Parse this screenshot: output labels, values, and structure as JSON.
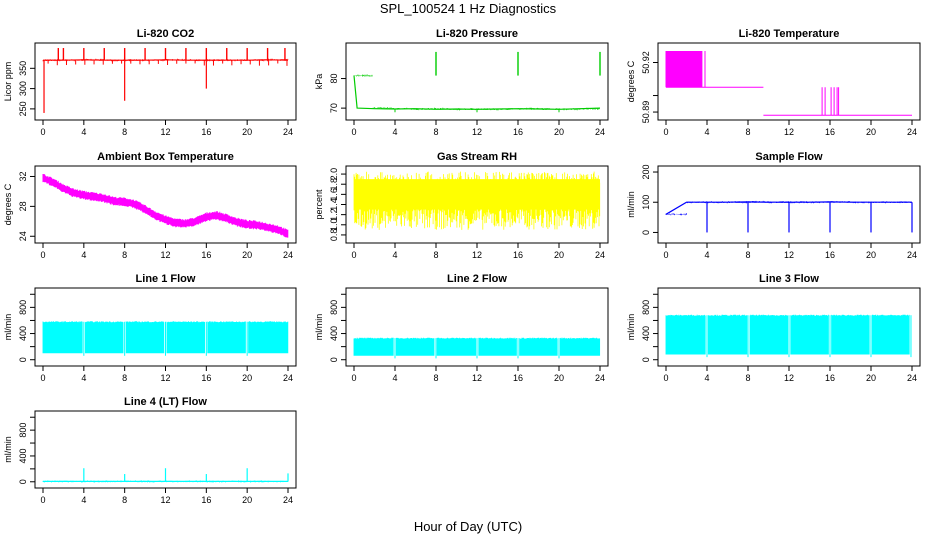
{
  "figure": {
    "title": "SPL_100524  1 Hz Diagnostics",
    "xlabel": "Hour of Day (UTC)"
  },
  "chart_data": [
    {
      "type": "line",
      "title": "Li-820 CO2",
      "ylabel": "Licor ppm",
      "color": "#ff0000",
      "xlim": [
        0,
        24
      ],
      "ylim": [
        230,
        405
      ],
      "yticks": [
        "250",
        "300",
        "350"
      ],
      "ytick_values": [
        250,
        300,
        350
      ],
      "xticks": [
        "0",
        "4",
        "8",
        "12",
        "16",
        "20",
        "24"
      ],
      "baseline": 370,
      "x": [
        0,
        2,
        4,
        6,
        8,
        10,
        12,
        14,
        16,
        18,
        20,
        22,
        24
      ],
      "y": [
        370,
        370,
        371,
        370,
        370,
        370,
        371,
        370,
        370,
        370,
        370,
        371,
        370
      ],
      "spikes_up_at_hours": [
        1.5,
        2,
        4,
        6,
        8,
        10,
        12,
        14,
        16,
        18,
        20,
        22,
        23.7
      ],
      "spike_up_value": 400,
      "spikes_down": [
        [
          0.1,
          240
        ],
        [
          8,
          270
        ],
        [
          16,
          300
        ]
      ]
    },
    {
      "type": "line",
      "title": "Li-820 Pressure",
      "ylabel": "kPa",
      "color": "#00cc00",
      "xlim": [
        0,
        24
      ],
      "ylim": [
        67,
        91
      ],
      "yticks": [
        "70",
        "80"
      ],
      "ytick_values": [
        70,
        80
      ],
      "xticks": [
        "0",
        "4",
        "8",
        "12",
        "16",
        "20",
        "24"
      ],
      "x": [
        0,
        0.3,
        2,
        4,
        6,
        8,
        10,
        12,
        14,
        16,
        18,
        20,
        22,
        24
      ],
      "y": [
        81,
        70,
        69.8,
        69.7,
        69.8,
        69.6,
        69.7,
        69.6,
        69.7,
        69.8,
        69.7,
        69.6,
        69.8,
        70
      ],
      "spikes_up_at_hours": [
        8,
        16,
        24
      ],
      "spike_up_value": 89
    },
    {
      "type": "line",
      "title": "Li-820 Temperature",
      "ylabel": "degrees C",
      "color": "#ff00ff",
      "xlim": [
        0,
        24
      ],
      "ylim": [
        50.887,
        50.93
      ],
      "yticks": [
        "50.89",
        "50.92"
      ],
      "ytick_values": [
        50.89,
        50.92
      ],
      "minor_ytick_values": [
        50.9
      ],
      "xticks": [
        "0",
        "4",
        "8",
        "12",
        "16",
        "20",
        "24"
      ],
      "levels": [
        50.888,
        50.905,
        50.927
      ],
      "segments": [
        {
          "start": 0,
          "end": 3.5,
          "low": 50.905,
          "high": 50.927
        },
        {
          "start": 3.5,
          "end": 9.5,
          "low": 50.905,
          "high": 50.905
        },
        {
          "start": 9.5,
          "end": 14.5,
          "low": 50.888,
          "high": 50.888
        },
        {
          "start": 14.5,
          "end": 17.5,
          "low": 50.888,
          "high": 50.905
        },
        {
          "start": 17.5,
          "end": 24,
          "low": 50.888,
          "high": 50.888
        }
      ]
    },
    {
      "type": "line",
      "title": "Ambient Box Temperature",
      "ylabel": "degrees C",
      "color": "#ff00ff",
      "xlim": [
        0,
        24
      ],
      "ylim": [
        23.5,
        33
      ],
      "yticks": [
        "24",
        "28",
        "32"
      ],
      "ytick_values": [
        24,
        28,
        32
      ],
      "xticks": [
        "0",
        "4",
        "8",
        "12",
        "16",
        "20",
        "24"
      ],
      "x": [
        0,
        1,
        2,
        3,
        4,
        5,
        6,
        7,
        8,
        9,
        10,
        11,
        12,
        13,
        14,
        15,
        16,
        17,
        18,
        19,
        20,
        21,
        22,
        23,
        24
      ],
      "y": [
        31.8,
        31.2,
        30.4,
        29.8,
        29.5,
        29.3,
        29.1,
        28.7,
        28.6,
        28.3,
        27.6,
        26.8,
        26.2,
        25.8,
        25.7,
        26.0,
        26.6,
        26.8,
        26.4,
        25.9,
        25.6,
        25.5,
        25.2,
        24.9,
        24.3
      ]
    },
    {
      "type": "line",
      "title": "Gas Stream RH",
      "ylabel": "percent",
      "color": "#ffff00",
      "xlim": [
        0,
        24
      ],
      "ylim": [
        0.7,
        2.1
      ],
      "yticks": [
        "0.8",
        "1.0",
        "1.2",
        "1.4",
        "1.6",
        "1.8",
        "2.0"
      ],
      "ytick_values": [
        0.8,
        1.0,
        1.2,
        1.4,
        1.6,
        1.8,
        2.0
      ],
      "xticks": [
        "0",
        "4",
        "8",
        "12",
        "16",
        "20",
        "24"
      ],
      "range_low": 0.9,
      "range_high": 2.05,
      "dense_band": [
        1.3,
        1.9
      ]
    },
    {
      "type": "line",
      "title": "Sample Flow",
      "ylabel": "ml/min",
      "color": "#0000ff",
      "xlim": [
        0,
        24
      ],
      "ylim": [
        -25,
        210
      ],
      "yticks": [
        "0",
        "100",
        "200"
      ],
      "ytick_values": [
        0,
        100,
        200
      ],
      "xticks": [
        "0",
        "4",
        "8",
        "12",
        "16",
        "20",
        "24"
      ],
      "baseline": 100,
      "x": [
        0,
        2,
        4,
        6,
        8,
        10,
        12,
        14,
        16,
        18,
        20,
        22,
        24
      ],
      "y": [
        60,
        100,
        100,
        100,
        101,
        100,
        100,
        100,
        101,
        100,
        100,
        100,
        100
      ],
      "dips_at_hours": [
        4,
        8,
        12,
        16,
        20,
        24
      ],
      "dip_value": 0
    },
    {
      "type": "area",
      "title": "Line 1 Flow",
      "ylabel": "ml/min",
      "color": "#00ffff",
      "xlim": [
        0,
        24
      ],
      "ylim": [
        -50,
        1050
      ],
      "yticks": [
        "0",
        "400",
        "800"
      ],
      "ytick_values": [
        0,
        400,
        800
      ],
      "minor_ytick_values": [
        200,
        600,
        1000
      ],
      "xticks": [
        "0",
        "4",
        "8",
        "12",
        "16",
        "20",
        "24"
      ],
      "low": 100,
      "high": 580,
      "gaps_at_hours": [
        4,
        8,
        12,
        16,
        20
      ]
    },
    {
      "type": "area",
      "title": "Line 2 Flow",
      "ylabel": "ml/min",
      "color": "#00ffff",
      "xlim": [
        0,
        24
      ],
      "ylim": [
        -50,
        1050
      ],
      "yticks": [
        "0",
        "400",
        "800"
      ],
      "ytick_values": [
        0,
        400,
        800
      ],
      "minor_ytick_values": [
        200,
        600,
        1000
      ],
      "xticks": [
        "0",
        "4",
        "8",
        "12",
        "16",
        "20",
        "24"
      ],
      "low": 60,
      "high": 330,
      "gaps_at_hours": [
        4,
        8,
        12,
        16,
        20
      ]
    },
    {
      "type": "area",
      "title": "Line 3 Flow",
      "ylabel": "ml/min",
      "color": "#00ffff",
      "xlim": [
        0,
        24
      ],
      "ylim": [
        -50,
        1050
      ],
      "yticks": [
        "0",
        "400",
        "800"
      ],
      "ytick_values": [
        0,
        400,
        800
      ],
      "minor_ytick_values": [
        200,
        600,
        1000
      ],
      "xticks": [
        "0",
        "4",
        "8",
        "12",
        "16",
        "20",
        "24"
      ],
      "low": 80,
      "high": 680,
      "gaps_at_hours": [
        4,
        8,
        12,
        16,
        20,
        23.9
      ]
    },
    {
      "type": "line",
      "title": "Line 4 (LT) Flow",
      "ylabel": "ml/min",
      "color": "#00ffff",
      "xlim": [
        0,
        24
      ],
      "ylim": [
        -50,
        1050
      ],
      "yticks": [
        "0",
        "400",
        "800"
      ],
      "ytick_values": [
        0,
        400,
        800
      ],
      "minor_ytick_values": [
        200,
        600,
        1000
      ],
      "xticks": [
        "0",
        "4",
        "8",
        "12",
        "16",
        "20",
        "24"
      ],
      "baseline": 5,
      "x": [
        0,
        4,
        8,
        12,
        16,
        20,
        24
      ],
      "y": [
        5,
        5,
        5,
        5,
        5,
        5,
        5
      ],
      "spikes_up": [
        [
          4,
          210
        ],
        [
          8,
          120
        ],
        [
          12,
          210
        ],
        [
          16,
          120
        ],
        [
          20,
          210
        ],
        [
          24,
          130
        ]
      ]
    }
  ]
}
